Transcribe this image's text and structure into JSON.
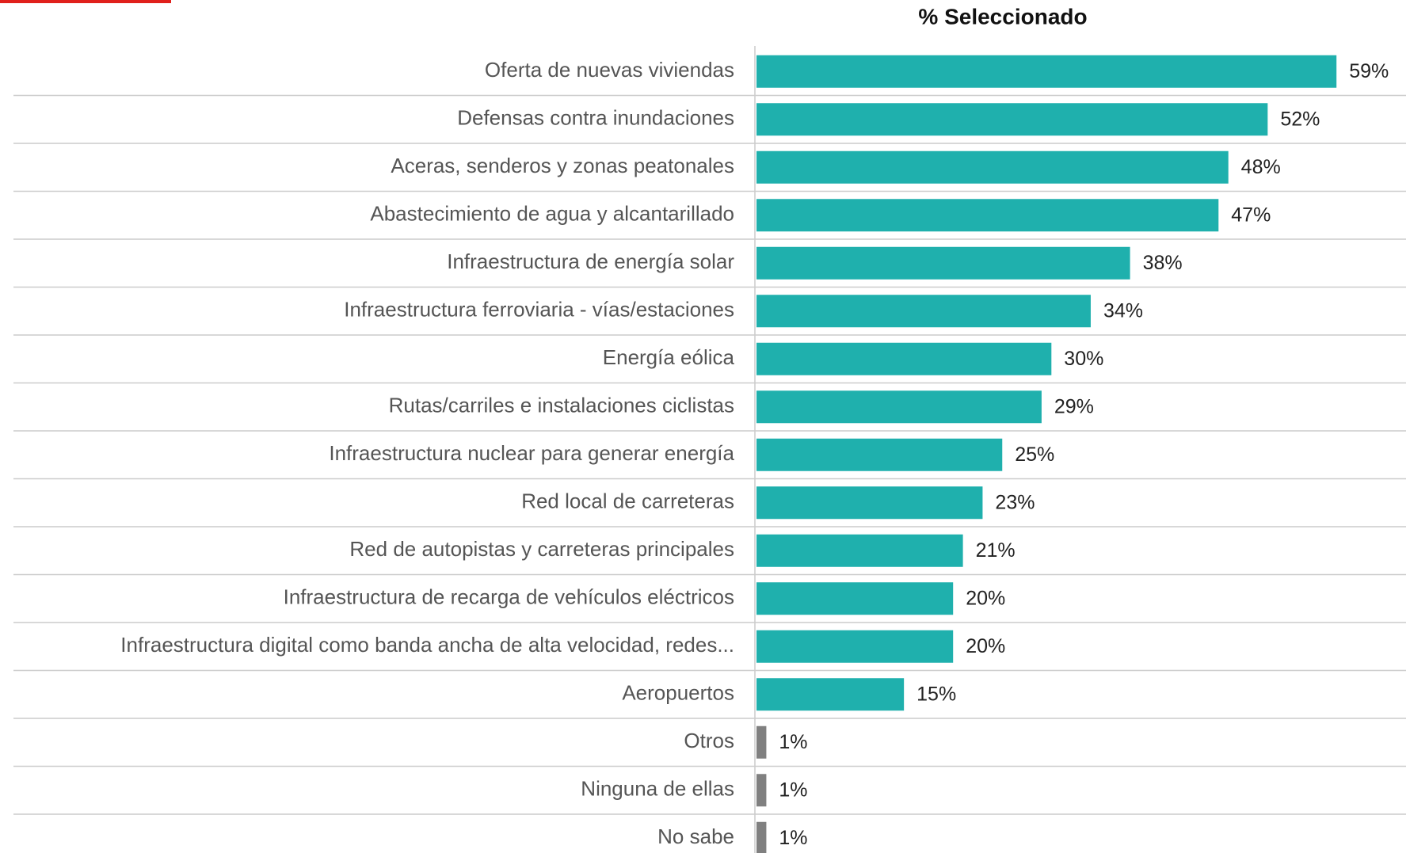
{
  "chart_data": {
    "type": "bar",
    "orientation": "horizontal",
    "title": "% Seleccionado",
    "categories": [
      "Oferta de nuevas viviendas",
      "Defensas contra inundaciones",
      "Aceras, senderos y zonas peatonales",
      "Abastecimiento de agua y alcantarillado",
      "Infraestructura de energía solar",
      "Infraestructura ferroviaria - vías/estaciones",
      "Energía eólica",
      "Rutas/carriles e instalaciones ciclistas",
      "Infraestructura nuclear para generar energía",
      "Red local de carreteras",
      "Red de autopistas y carreteras principales",
      "Infraestructura de recarga de vehículos eléctricos",
      "Infraestructura digital como banda ancha de alta velocidad, redes...",
      "Aeropuertos",
      "Otros",
      "Ninguna de ellas",
      "No sabe"
    ],
    "values": [
      59,
      52,
      48,
      47,
      38,
      34,
      30,
      29,
      25,
      23,
      21,
      20,
      20,
      15,
      1,
      1,
      1
    ],
    "value_labels": [
      "59%",
      "52%",
      "48%",
      "47%",
      "38%",
      "34%",
      "30%",
      "29%",
      "25%",
      "23%",
      "21%",
      "20%",
      "20%",
      "15%",
      "1%",
      "1%",
      "1%"
    ],
    "colors": [
      "#1fb0ad",
      "#1fb0ad",
      "#1fb0ad",
      "#1fb0ad",
      "#1fb0ad",
      "#1fb0ad",
      "#1fb0ad",
      "#1fb0ad",
      "#1fb0ad",
      "#1fb0ad",
      "#1fb0ad",
      "#1fb0ad",
      "#1fb0ad",
      "#1fb0ad",
      "#808080",
      "#808080",
      "#808080"
    ]
  }
}
